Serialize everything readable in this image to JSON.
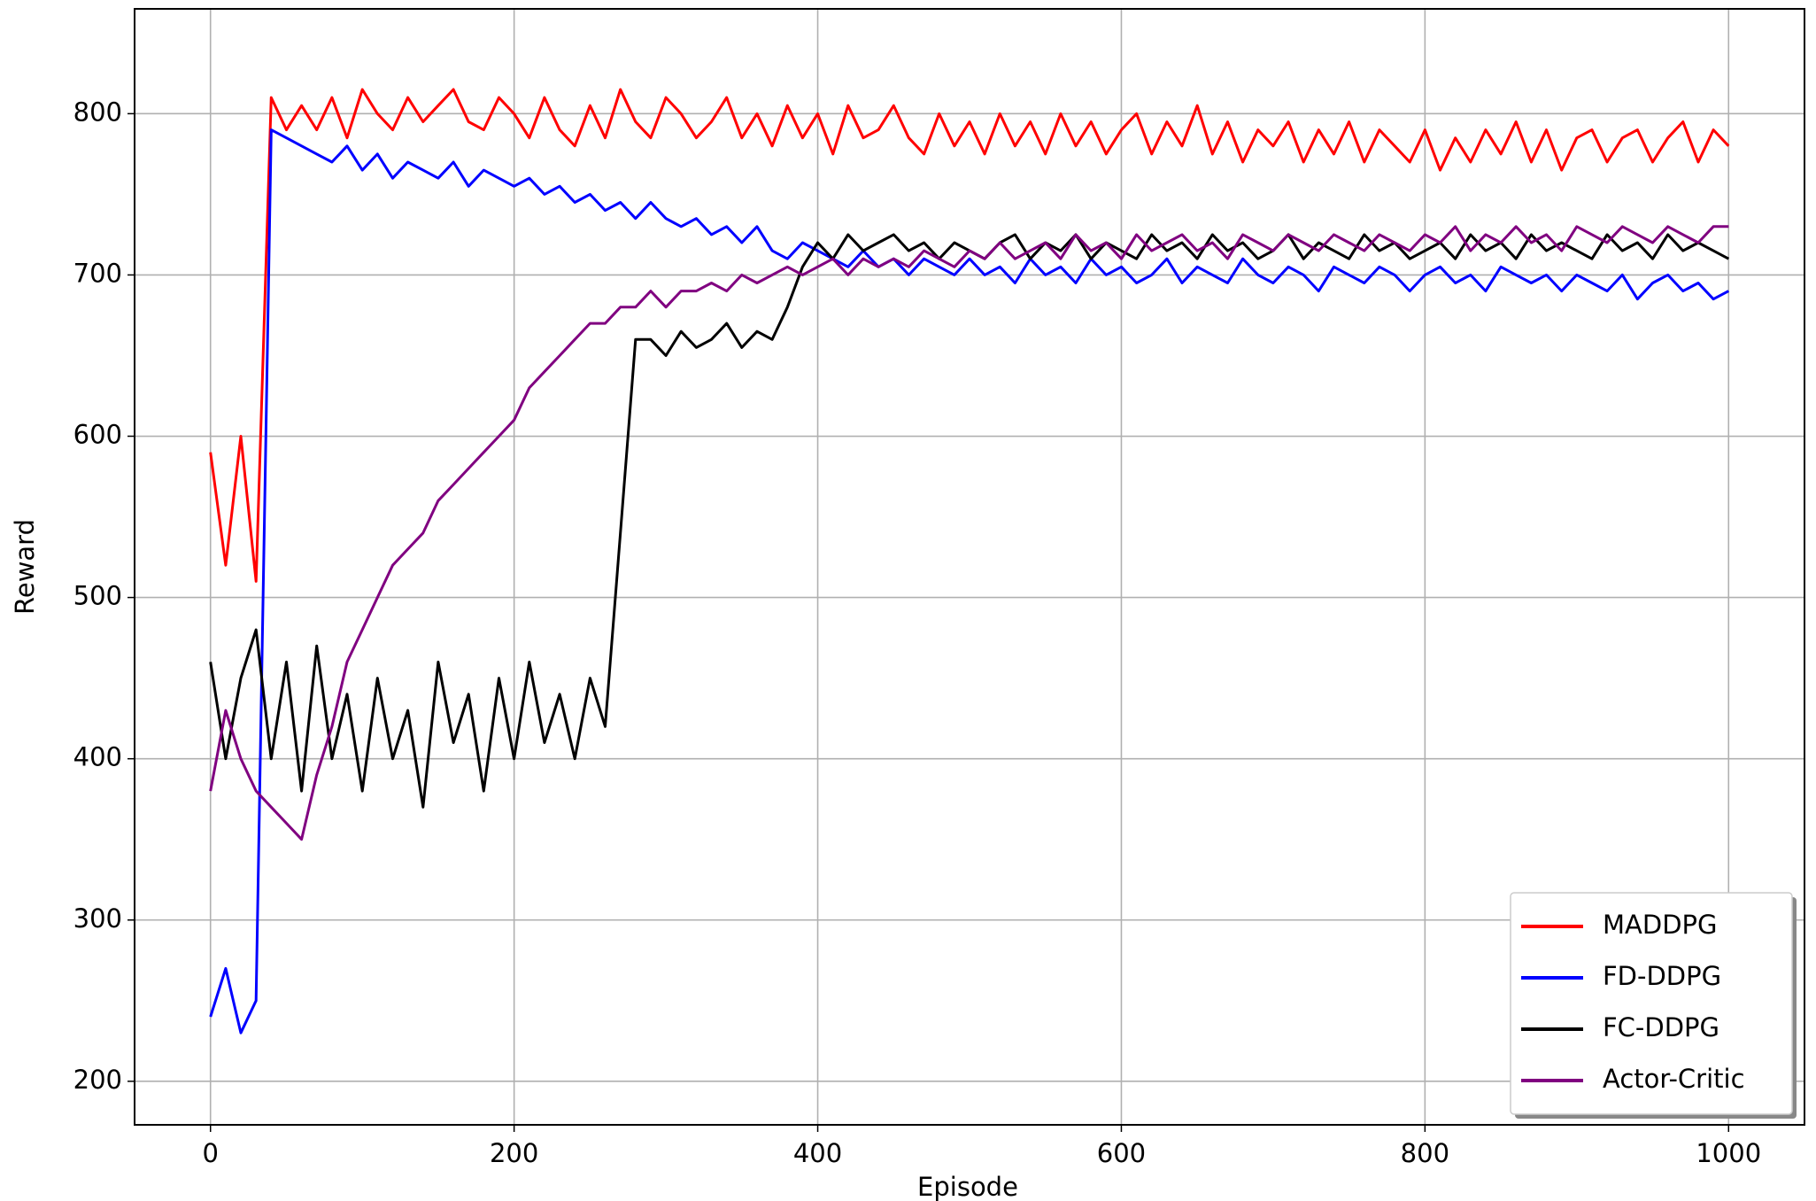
{
  "chart_data": {
    "type": "line",
    "xlabel": "Episode",
    "ylabel": "Reward",
    "x": [
      0,
      10,
      20,
      30,
      40,
      50,
      60,
      70,
      80,
      90,
      100,
      110,
      120,
      130,
      140,
      150,
      160,
      170,
      180,
      190,
      200,
      210,
      220,
      230,
      240,
      250,
      260,
      270,
      280,
      290,
      300,
      310,
      320,
      330,
      340,
      350,
      360,
      370,
      380,
      390,
      400,
      410,
      420,
      430,
      440,
      450,
      460,
      470,
      480,
      490,
      500,
      510,
      520,
      530,
      540,
      550,
      560,
      570,
      580,
      590,
      600,
      610,
      620,
      630,
      640,
      650,
      660,
      670,
      680,
      690,
      700,
      710,
      720,
      730,
      740,
      750,
      760,
      770,
      780,
      790,
      800,
      810,
      820,
      830,
      840,
      850,
      860,
      870,
      880,
      890,
      900,
      910,
      920,
      930,
      940,
      950,
      960,
      970,
      980,
      990,
      1000
    ],
    "series": [
      {
        "name": "MADDPG",
        "color": "#ff0000",
        "values": [
          590,
          520,
          600,
          510,
          810,
          790,
          805,
          790,
          810,
          785,
          815,
          800,
          790,
          810,
          795,
          805,
          815,
          795,
          790,
          810,
          800,
          785,
          810,
          790,
          780,
          805,
          785,
          815,
          795,
          785,
          810,
          800,
          785,
          795,
          810,
          785,
          800,
          780,
          805,
          785,
          800,
          775,
          805,
          785,
          790,
          805,
          785,
          775,
          800,
          780,
          795,
          775,
          800,
          780,
          795,
          775,
          800,
          780,
          795,
          775,
          790,
          800,
          775,
          795,
          780,
          805,
          775,
          795,
          770,
          790,
          780,
          795,
          770,
          790,
          775,
          795,
          770,
          790,
          780,
          770,
          790,
          765,
          785,
          770,
          790,
          775,
          795,
          770,
          790,
          765,
          785,
          790,
          770,
          785,
          790,
          770,
          785,
          795,
          770,
          790,
          780
        ]
      },
      {
        "name": "FD-DDPG",
        "color": "#0000ff",
        "values": [
          240,
          270,
          230,
          250,
          790,
          785,
          780,
          775,
          770,
          780,
          765,
          775,
          760,
          770,
          765,
          760,
          770,
          755,
          765,
          760,
          755,
          760,
          750,
          755,
          745,
          750,
          740,
          745,
          735,
          745,
          735,
          730,
          735,
          725,
          730,
          720,
          730,
          715,
          710,
          720,
          715,
          710,
          705,
          715,
          705,
          710,
          700,
          710,
          705,
          700,
          710,
          700,
          705,
          695,
          710,
          700,
          705,
          695,
          710,
          700,
          705,
          695,
          700,
          710,
          695,
          705,
          700,
          695,
          710,
          700,
          695,
          705,
          700,
          690,
          705,
          700,
          695,
          705,
          700,
          690,
          700,
          705,
          695,
          700,
          690,
          705,
          700,
          695,
          700,
          690,
          700,
          695,
          690,
          700,
          685,
          695,
          700,
          690,
          695,
          685,
          690
        ]
      },
      {
        "name": "FC-DDPG",
        "color": "#000000",
        "values": [
          460,
          400,
          450,
          480,
          400,
          460,
          380,
          470,
          400,
          440,
          380,
          450,
          400,
          430,
          370,
          460,
          410,
          440,
          380,
          450,
          400,
          460,
          410,
          440,
          400,
          450,
          420,
          540,
          660,
          660,
          650,
          665,
          655,
          660,
          670,
          655,
          665,
          660,
          680,
          705,
          720,
          710,
          725,
          715,
          720,
          725,
          715,
          720,
          710,
          720,
          715,
          710,
          720,
          725,
          710,
          720,
          715,
          725,
          710,
          720,
          715,
          710,
          725,
          715,
          720,
          710,
          725,
          715,
          720,
          710,
          715,
          725,
          710,
          720,
          715,
          710,
          725,
          715,
          720,
          710,
          715,
          720,
          710,
          725,
          715,
          720,
          710,
          725,
          715,
          720,
          715,
          710,
          725,
          715,
          720,
          710,
          725,
          715,
          720,
          715,
          710
        ]
      },
      {
        "name": "Actor-Critic",
        "color": "#800080",
        "values": [
          380,
          430,
          400,
          380,
          370,
          360,
          350,
          390,
          420,
          460,
          480,
          500,
          520,
          530,
          540,
          560,
          570,
          580,
          590,
          600,
          610,
          630,
          640,
          650,
          660,
          670,
          670,
          680,
          680,
          690,
          680,
          690,
          690,
          695,
          690,
          700,
          695,
          700,
          705,
          700,
          705,
          710,
          700,
          710,
          705,
          710,
          705,
          715,
          710,
          705,
          715,
          710,
          720,
          710,
          715,
          720,
          710,
          725,
          715,
          720,
          710,
          725,
          715,
          720,
          725,
          715,
          720,
          710,
          725,
          720,
          715,
          725,
          720,
          715,
          725,
          720,
          715,
          725,
          720,
          715,
          725,
          720,
          730,
          715,
          725,
          720,
          730,
          720,
          725,
          715,
          730,
          725,
          720,
          730,
          725,
          720,
          730,
          725,
          720,
          730,
          730
        ]
      }
    ],
    "xlim": [
      -50,
      1050
    ],
    "ylim": [
      173,
      865
    ],
    "xticks": [
      0,
      200,
      400,
      600,
      800,
      1000
    ],
    "yticks": [
      200,
      300,
      400,
      500,
      600,
      700,
      800
    ],
    "grid": true,
    "legend": "lower right"
  }
}
